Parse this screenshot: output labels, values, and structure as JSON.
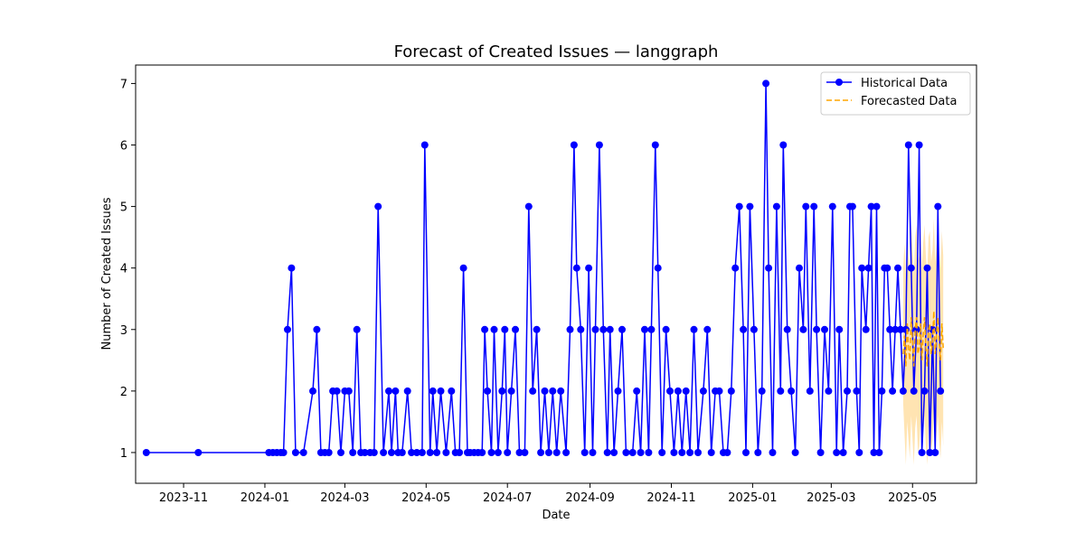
{
  "chart_data": {
    "type": "line",
    "title": "Forecast of Created Issues — langgraph",
    "xlabel": "Date",
    "ylabel": "Number of Created Issues",
    "xlim": [
      "2023-09-26",
      "2025-06-18"
    ],
    "ylim": [
      0.5,
      7.3
    ],
    "x_ticks": [
      "2023-11",
      "2024-01",
      "2024-03",
      "2024-05",
      "2024-07",
      "2024-09",
      "2024-11",
      "2025-01",
      "2025-03",
      "2025-05"
    ],
    "y_ticks": [
      1,
      2,
      3,
      4,
      5,
      6,
      7
    ],
    "grid": false,
    "legend_position": "top-right",
    "series": [
      {
        "name": "Historical Data",
        "color": "#0000ff",
        "style": "solid-markers",
        "points": [
          [
            "2023-10-04",
            1
          ],
          [
            "2023-11-12",
            1
          ],
          [
            "2024-01-04",
            1
          ],
          [
            "2024-01-07",
            1
          ],
          [
            "2024-01-10",
            1
          ],
          [
            "2024-01-13",
            1
          ],
          [
            "2024-01-15",
            1
          ],
          [
            "2024-01-18",
            3
          ],
          [
            "2024-01-21",
            4
          ],
          [
            "2024-01-24",
            1
          ],
          [
            "2024-01-30",
            1
          ],
          [
            "2024-02-06",
            2
          ],
          [
            "2024-02-09",
            3
          ],
          [
            "2024-02-12",
            1
          ],
          [
            "2024-02-15",
            1
          ],
          [
            "2024-02-18",
            1
          ],
          [
            "2024-02-21",
            2
          ],
          [
            "2024-02-24",
            2
          ],
          [
            "2024-02-27",
            1
          ],
          [
            "2024-03-01",
            2
          ],
          [
            "2024-03-04",
            2
          ],
          [
            "2024-03-07",
            1
          ],
          [
            "2024-03-10",
            3
          ],
          [
            "2024-03-13",
            1
          ],
          [
            "2024-03-16",
            1
          ],
          [
            "2024-03-20",
            1
          ],
          [
            "2024-03-23",
            1
          ],
          [
            "2024-03-26",
            5
          ],
          [
            "2024-03-30",
            1
          ],
          [
            "2024-04-03",
            2
          ],
          [
            "2024-04-05",
            1
          ],
          [
            "2024-04-08",
            2
          ],
          [
            "2024-04-10",
            1
          ],
          [
            "2024-04-13",
            1
          ],
          [
            "2024-04-17",
            2
          ],
          [
            "2024-04-20",
            1
          ],
          [
            "2024-04-24",
            1
          ],
          [
            "2024-04-28",
            1
          ],
          [
            "2024-04-30",
            6
          ],
          [
            "2024-05-04",
            1
          ],
          [
            "2024-05-06",
            2
          ],
          [
            "2024-05-09",
            1
          ],
          [
            "2024-05-12",
            2
          ],
          [
            "2024-05-16",
            1
          ],
          [
            "2024-05-20",
            2
          ],
          [
            "2024-05-23",
            1
          ],
          [
            "2024-05-26",
            1
          ],
          [
            "2024-05-29",
            4
          ],
          [
            "2024-06-01",
            1
          ],
          [
            "2024-06-03",
            1
          ],
          [
            "2024-06-06",
            1
          ],
          [
            "2024-06-09",
            1
          ],
          [
            "2024-06-12",
            1
          ],
          [
            "2024-06-14",
            3
          ],
          [
            "2024-06-16",
            2
          ],
          [
            "2024-06-19",
            1
          ],
          [
            "2024-06-21",
            3
          ],
          [
            "2024-06-24",
            1
          ],
          [
            "2024-06-27",
            2
          ],
          [
            "2024-06-29",
            3
          ],
          [
            "2024-07-01",
            1
          ],
          [
            "2024-07-04",
            2
          ],
          [
            "2024-07-07",
            3
          ],
          [
            "2024-07-10",
            1
          ],
          [
            "2024-07-14",
            1
          ],
          [
            "2024-07-17",
            5
          ],
          [
            "2024-07-20",
            2
          ],
          [
            "2024-07-23",
            3
          ],
          [
            "2024-07-26",
            1
          ],
          [
            "2024-07-29",
            2
          ],
          [
            "2024-08-01",
            1
          ],
          [
            "2024-08-04",
            2
          ],
          [
            "2024-08-07",
            1
          ],
          [
            "2024-08-10",
            2
          ],
          [
            "2024-08-14",
            1
          ],
          [
            "2024-08-17",
            3
          ],
          [
            "2024-08-20",
            6
          ],
          [
            "2024-08-22",
            4
          ],
          [
            "2024-08-25",
            3
          ],
          [
            "2024-08-28",
            1
          ],
          [
            "2024-08-31",
            4
          ],
          [
            "2024-09-03",
            1
          ],
          [
            "2024-09-05",
            3
          ],
          [
            "2024-09-08",
            6
          ],
          [
            "2024-09-11",
            3
          ],
          [
            "2024-09-14",
            1
          ],
          [
            "2024-09-16",
            3
          ],
          [
            "2024-09-19",
            1
          ],
          [
            "2024-09-22",
            2
          ],
          [
            "2024-09-25",
            3
          ],
          [
            "2024-09-28",
            1
          ],
          [
            "2024-10-03",
            1
          ],
          [
            "2024-10-06",
            2
          ],
          [
            "2024-10-09",
            1
          ],
          [
            "2024-10-12",
            3
          ],
          [
            "2024-10-15",
            1
          ],
          [
            "2024-10-17",
            3
          ],
          [
            "2024-10-20",
            6
          ],
          [
            "2024-10-22",
            4
          ],
          [
            "2024-10-25",
            1
          ],
          [
            "2024-10-28",
            3
          ],
          [
            "2024-10-31",
            2
          ],
          [
            "2024-11-03",
            1
          ],
          [
            "2024-11-06",
            2
          ],
          [
            "2024-11-09",
            1
          ],
          [
            "2024-11-12",
            2
          ],
          [
            "2024-11-15",
            1
          ],
          [
            "2024-11-18",
            3
          ],
          [
            "2024-11-21",
            1
          ],
          [
            "2024-11-25",
            2
          ],
          [
            "2024-11-28",
            3
          ],
          [
            "2024-12-01",
            1
          ],
          [
            "2024-12-04",
            2
          ],
          [
            "2024-12-07",
            2
          ],
          [
            "2024-12-10",
            1
          ],
          [
            "2024-12-13",
            1
          ],
          [
            "2024-12-16",
            2
          ],
          [
            "2024-12-19",
            4
          ],
          [
            "2024-12-22",
            5
          ],
          [
            "2024-12-25",
            3
          ],
          [
            "2024-12-27",
            1
          ],
          [
            "2024-12-30",
            5
          ],
          [
            "2025-01-02",
            3
          ],
          [
            "2025-01-05",
            1
          ],
          [
            "2025-01-08",
            2
          ],
          [
            "2025-01-11",
            7
          ],
          [
            "2025-01-13",
            4
          ],
          [
            "2025-01-16",
            1
          ],
          [
            "2025-01-19",
            5
          ],
          [
            "2025-01-22",
            2
          ],
          [
            "2025-01-24",
            6
          ],
          [
            "2025-01-27",
            3
          ],
          [
            "2025-01-30",
            2
          ],
          [
            "2025-02-02",
            1
          ],
          [
            "2025-02-05",
            4
          ],
          [
            "2025-02-08",
            3
          ],
          [
            "2025-02-10",
            5
          ],
          [
            "2025-02-13",
            2
          ],
          [
            "2025-02-16",
            5
          ],
          [
            "2025-02-18",
            3
          ],
          [
            "2025-02-21",
            1
          ],
          [
            "2025-02-24",
            3
          ],
          [
            "2025-02-27",
            2
          ],
          [
            "2025-03-02",
            5
          ],
          [
            "2025-03-05",
            1
          ],
          [
            "2025-03-07",
            3
          ],
          [
            "2025-03-10",
            1
          ],
          [
            "2025-03-13",
            2
          ],
          [
            "2025-03-15",
            5
          ],
          [
            "2025-03-17",
            5
          ],
          [
            "2025-03-20",
            2
          ],
          [
            "2025-03-22",
            1
          ],
          [
            "2025-03-24",
            4
          ],
          [
            "2025-03-27",
            3
          ],
          [
            "2025-03-29",
            4
          ],
          [
            "2025-03-31",
            5
          ],
          [
            "2025-04-02",
            1
          ],
          [
            "2025-04-04",
            5
          ],
          [
            "2025-04-06",
            1
          ],
          [
            "2025-04-08",
            2
          ],
          [
            "2025-04-10",
            4
          ],
          [
            "2025-04-12",
            4
          ],
          [
            "2025-04-14",
            3
          ],
          [
            "2025-04-16",
            2
          ],
          [
            "2025-04-18",
            3
          ],
          [
            "2025-04-20",
            4
          ],
          [
            "2025-04-22",
            3
          ],
          [
            "2025-04-24",
            2
          ],
          [
            "2025-04-26",
            3
          ],
          [
            "2025-04-28",
            6
          ],
          [
            "2025-04-30",
            4
          ],
          [
            "2025-05-02",
            2
          ],
          [
            "2025-05-04",
            3
          ],
          [
            "2025-05-06",
            6
          ],
          [
            "2025-05-08",
            1
          ],
          [
            "2025-05-10",
            2
          ],
          [
            "2025-05-12",
            4
          ],
          [
            "2025-05-14",
            1
          ],
          [
            "2025-05-16",
            3
          ],
          [
            "2025-05-18",
            1
          ],
          [
            "2025-05-20",
            5
          ],
          [
            "2025-05-22",
            2
          ]
        ]
      },
      {
        "name": "Forecasted Data",
        "color": "#ffa500",
        "style": "dashed",
        "band_color": "#ffa500",
        "points": [
          [
            "2025-04-24",
            2.6
          ],
          [
            "2025-04-25",
            2.9
          ],
          [
            "2025-04-26",
            2.4
          ],
          [
            "2025-04-27",
            3.1
          ],
          [
            "2025-04-28",
            2.7
          ],
          [
            "2025-04-29",
            2.5
          ],
          [
            "2025-04-30",
            3.2
          ],
          [
            "2025-05-01",
            2.8
          ],
          [
            "2025-05-02",
            2.4
          ],
          [
            "2025-05-03",
            3.0
          ],
          [
            "2025-05-04",
            3.2
          ],
          [
            "2025-05-05",
            2.6
          ],
          [
            "2025-05-06",
            2.7
          ],
          [
            "2025-05-07",
            3.1
          ],
          [
            "2025-05-08",
            2.5
          ],
          [
            "2025-05-09",
            2.9
          ],
          [
            "2025-05-10",
            3.2
          ],
          [
            "2025-05-11",
            2.7
          ],
          [
            "2025-05-12",
            2.4
          ],
          [
            "2025-05-13",
            3.0
          ],
          [
            "2025-05-14",
            3.1
          ],
          [
            "2025-05-15",
            2.6
          ],
          [
            "2025-05-16",
            2.8
          ],
          [
            "2025-05-17",
            3.3
          ],
          [
            "2025-05-18",
            2.6
          ],
          [
            "2025-05-19",
            2.9
          ],
          [
            "2025-05-20",
            3.2
          ],
          [
            "2025-05-21",
            2.8
          ],
          [
            "2025-05-22",
            2.5
          ],
          [
            "2025-05-23",
            3.1
          ],
          [
            "2025-05-24",
            2.7
          ]
        ],
        "lower": [
          1.8,
          1.3,
          0.8,
          1.5,
          1.2,
          0.9,
          1.6,
          1.2,
          0.8,
          1.4,
          1.6,
          1.0,
          1.1,
          1.5,
          0.9,
          1.3,
          1.6,
          1.1,
          0.8,
          1.4,
          1.5,
          1.0,
          1.2,
          1.7,
          1.0,
          1.3,
          1.6,
          1.2,
          0.9,
          1.5,
          1.1
        ],
        "upper": [
          4.0,
          4.4,
          3.9,
          4.6,
          4.2,
          4.0,
          4.7,
          4.3,
          3.9,
          4.5,
          4.7,
          4.1,
          4.2,
          4.6,
          4.0,
          4.4,
          4.7,
          4.2,
          3.9,
          4.5,
          4.6,
          4.1,
          4.3,
          4.8,
          4.1,
          4.4,
          4.7,
          4.3,
          4.0,
          4.6,
          4.2
        ]
      }
    ]
  }
}
